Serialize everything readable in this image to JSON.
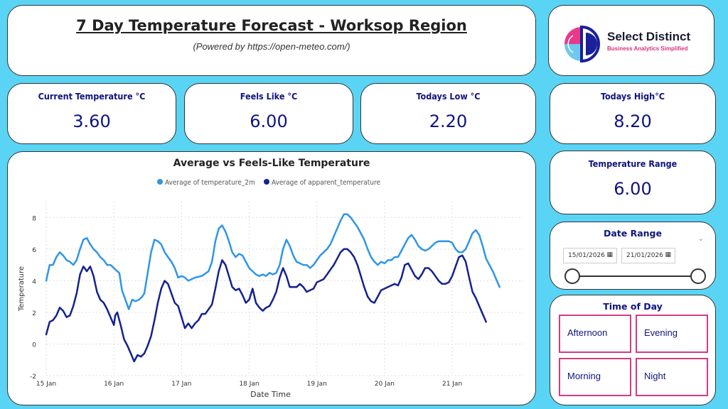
{
  "header": {
    "title": "7 Day Temperature Forecast - Worksop Region",
    "subtitle": "(Powered by https://open-meteo.com/)"
  },
  "logo": {
    "brand": "Select Distinct",
    "tagline": "Business Analytics Simplified"
  },
  "kpis": {
    "current": {
      "label": "Current Temperature °C",
      "value": "3.60"
    },
    "feels": {
      "label": "Feels Like °C",
      "value": "6.00"
    },
    "low": {
      "label": "Todays Low °C",
      "value": "2.20"
    },
    "high": {
      "label": "Todays High°C",
      "value": "8.20"
    },
    "range": {
      "label": "Temperature Range",
      "value": "6.00"
    }
  },
  "date_range": {
    "label": "Date Range",
    "start": "15/01/2026",
    "end": "21/01/2026"
  },
  "time_of_day": {
    "label": "Time of Day",
    "options": [
      "Afternoon",
      "Evening",
      "Morning",
      "Night"
    ]
  },
  "colors": {
    "series1": "#2f95e8",
    "series2": "#14218f",
    "kpi_text": "#10147e",
    "accent": "#d33b85"
  },
  "chart_data": {
    "type": "line",
    "title": "Average vs Feels-Like Temperature",
    "xlabel": "Date Time",
    "ylabel": "Temperature",
    "ylim": [
      -2,
      9
    ],
    "yticks": [
      -2,
      0,
      2,
      4,
      6,
      8
    ],
    "xlim": [
      0,
      7.05
    ],
    "xticks": [
      {
        "x": 0,
        "label": "15 Jan"
      },
      {
        "x": 1,
        "label": "16 Jan"
      },
      {
        "x": 2,
        "label": "17 Jan"
      },
      {
        "x": 3,
        "label": "18 Jan"
      },
      {
        "x": 4,
        "label": "19 Jan"
      },
      {
        "x": 5,
        "label": "20 Jan"
      },
      {
        "x": 6,
        "label": "21 Jan"
      }
    ],
    "legend": "top-center",
    "grid": true,
    "series": [
      {
        "name": "Average of temperature_2m",
        "points": [
          [
            0.0,
            4.0
          ],
          [
            0.05,
            5.0
          ],
          [
            0.1,
            5.0
          ],
          [
            0.15,
            5.5
          ],
          [
            0.2,
            5.8
          ],
          [
            0.25,
            5.6
          ],
          [
            0.3,
            5.3
          ],
          [
            0.35,
            5.2
          ],
          [
            0.4,
            5.0
          ],
          [
            0.45,
            5.3
          ],
          [
            0.5,
            6.0
          ],
          [
            0.55,
            6.6
          ],
          [
            0.6,
            6.7
          ],
          [
            0.65,
            6.3
          ],
          [
            0.7,
            6.0
          ],
          [
            0.75,
            5.8
          ],
          [
            0.8,
            5.5
          ],
          [
            0.85,
            5.3
          ],
          [
            0.9,
            5.0
          ],
          [
            0.95,
            5.0
          ],
          [
            1.0,
            4.8
          ],
          [
            1.05,
            4.6
          ],
          [
            1.08,
            4.5
          ],
          [
            1.12,
            3.4
          ],
          [
            1.17,
            2.8
          ],
          [
            1.22,
            2.2
          ],
          [
            1.27,
            2.8
          ],
          [
            1.32,
            2.7
          ],
          [
            1.37,
            2.8
          ],
          [
            1.42,
            3.0
          ],
          [
            1.45,
            3.2
          ],
          [
            1.5,
            4.5
          ],
          [
            1.55,
            5.8
          ],
          [
            1.6,
            6.6
          ],
          [
            1.65,
            6.5
          ],
          [
            1.7,
            6.3
          ],
          [
            1.75,
            5.8
          ],
          [
            1.8,
            5.5
          ],
          [
            1.85,
            5.2
          ],
          [
            1.9,
            4.8
          ],
          [
            1.95,
            4.2
          ],
          [
            2.0,
            4.3
          ],
          [
            2.05,
            4.2
          ],
          [
            2.1,
            4.0
          ],
          [
            2.2,
            4.2
          ],
          [
            2.3,
            4.3
          ],
          [
            2.4,
            4.6
          ],
          [
            2.45,
            5.2
          ],
          [
            2.5,
            6.5
          ],
          [
            2.55,
            7.3
          ],
          [
            2.6,
            7.5
          ],
          [
            2.65,
            7.1
          ],
          [
            2.7,
            6.5
          ],
          [
            2.75,
            5.8
          ],
          [
            2.8,
            5.5
          ],
          [
            2.85,
            5.7
          ],
          [
            2.9,
            5.6
          ],
          [
            2.95,
            5.2
          ],
          [
            3.0,
            4.8
          ],
          [
            3.05,
            4.6
          ],
          [
            3.1,
            4.4
          ],
          [
            3.15,
            4.3
          ],
          [
            3.2,
            4.4
          ],
          [
            3.25,
            4.3
          ],
          [
            3.3,
            4.5
          ],
          [
            3.35,
            4.4
          ],
          [
            3.4,
            4.5
          ],
          [
            3.45,
            5.0
          ],
          [
            3.5,
            6.0
          ],
          [
            3.55,
            6.6
          ],
          [
            3.6,
            6.2
          ],
          [
            3.65,
            5.6
          ],
          [
            3.7,
            5.2
          ],
          [
            3.75,
            5.1
          ],
          [
            3.8,
            5.0
          ],
          [
            3.85,
            5.0
          ],
          [
            3.9,
            4.8
          ],
          [
            3.95,
            5.0
          ],
          [
            4.0,
            5.3
          ],
          [
            4.05,
            5.6
          ],
          [
            4.1,
            5.8
          ],
          [
            4.15,
            6.0
          ],
          [
            4.2,
            6.3
          ],
          [
            4.25,
            6.8
          ],
          [
            4.3,
            7.3
          ],
          [
            4.35,
            7.8
          ],
          [
            4.4,
            8.2
          ],
          [
            4.45,
            8.2
          ],
          [
            4.5,
            8.0
          ],
          [
            4.55,
            7.7
          ],
          [
            4.6,
            7.4
          ],
          [
            4.65,
            7.0
          ],
          [
            4.7,
            6.6
          ],
          [
            4.75,
            6.0
          ],
          [
            4.8,
            5.5
          ],
          [
            4.85,
            5.2
          ],
          [
            4.9,
            5.0
          ],
          [
            4.95,
            5.2
          ],
          [
            5.0,
            5.1
          ],
          [
            5.05,
            5.3
          ],
          [
            5.1,
            5.3
          ],
          [
            5.15,
            5.5
          ],
          [
            5.2,
            5.5
          ],
          [
            5.25,
            5.9
          ],
          [
            5.3,
            6.3
          ],
          [
            5.35,
            6.7
          ],
          [
            5.4,
            6.9
          ],
          [
            5.45,
            6.6
          ],
          [
            5.5,
            6.2
          ],
          [
            5.55,
            6.0
          ],
          [
            5.6,
            5.9
          ],
          [
            5.65,
            6.0
          ],
          [
            5.7,
            6.2
          ],
          [
            5.75,
            6.4
          ],
          [
            5.8,
            6.5
          ],
          [
            5.85,
            6.5
          ],
          [
            5.9,
            6.5
          ],
          [
            5.95,
            6.5
          ],
          [
            6.0,
            6.4
          ],
          [
            6.05,
            6.0
          ],
          [
            6.1,
            5.8
          ],
          [
            6.15,
            5.8
          ],
          [
            6.2,
            6.0
          ],
          [
            6.25,
            6.5
          ],
          [
            6.3,
            7.0
          ],
          [
            6.35,
            7.2
          ],
          [
            6.4,
            6.9
          ],
          [
            6.45,
            6.2
          ],
          [
            6.5,
            5.4
          ],
          [
            6.55,
            5.0
          ],
          [
            6.6,
            4.6
          ],
          [
            6.65,
            4.1
          ],
          [
            6.7,
            3.6
          ]
        ]
      },
      {
        "name": "Average of apparent_temperature",
        "points": [
          [
            0.0,
            0.6
          ],
          [
            0.05,
            1.4
          ],
          [
            0.1,
            1.5
          ],
          [
            0.15,
            1.8
          ],
          [
            0.2,
            2.3
          ],
          [
            0.25,
            2.1
          ],
          [
            0.3,
            1.7
          ],
          [
            0.35,
            1.8
          ],
          [
            0.4,
            2.4
          ],
          [
            0.45,
            3.2
          ],
          [
            0.5,
            4.4
          ],
          [
            0.55,
            4.9
          ],
          [
            0.6,
            4.6
          ],
          [
            0.65,
            4.9
          ],
          [
            0.7,
            4.3
          ],
          [
            0.75,
            3.3
          ],
          [
            0.8,
            2.8
          ],
          [
            0.85,
            2.6
          ],
          [
            0.9,
            2.2
          ],
          [
            0.95,
            1.7
          ],
          [
            1.0,
            1.2
          ],
          [
            1.02,
            1.8
          ],
          [
            1.05,
            2.0
          ],
          [
            1.1,
            1.2
          ],
          [
            1.15,
            0.3
          ],
          [
            1.2,
            -0.1
          ],
          [
            1.25,
            -0.6
          ],
          [
            1.3,
            -1.1
          ],
          [
            1.35,
            -0.7
          ],
          [
            1.4,
            -0.8
          ],
          [
            1.45,
            -0.6
          ],
          [
            1.5,
            -0.1
          ],
          [
            1.55,
            0.5
          ],
          [
            1.6,
            1.5
          ],
          [
            1.65,
            2.6
          ],
          [
            1.7,
            3.5
          ],
          [
            1.75,
            4.0
          ],
          [
            1.8,
            3.8
          ],
          [
            1.85,
            3.2
          ],
          [
            1.9,
            2.6
          ],
          [
            1.95,
            2.4
          ],
          [
            2.0,
            1.7
          ],
          [
            2.05,
            1.0
          ],
          [
            2.1,
            1.3
          ],
          [
            2.15,
            1.0
          ],
          [
            2.2,
            1.3
          ],
          [
            2.25,
            1.5
          ],
          [
            2.3,
            1.9
          ],
          [
            2.35,
            1.9
          ],
          [
            2.4,
            2.2
          ],
          [
            2.45,
            2.5
          ],
          [
            2.5,
            3.5
          ],
          [
            2.55,
            4.6
          ],
          [
            2.6,
            5.3
          ],
          [
            2.65,
            5.0
          ],
          [
            2.7,
            4.3
          ],
          [
            2.75,
            3.6
          ],
          [
            2.8,
            3.4
          ],
          [
            2.85,
            3.5
          ],
          [
            2.9,
            3.1
          ],
          [
            2.95,
            2.6
          ],
          [
            3.0,
            2.8
          ],
          [
            3.05,
            3.5
          ],
          [
            3.1,
            2.6
          ],
          [
            3.15,
            2.3
          ],
          [
            3.2,
            2.1
          ],
          [
            3.25,
            2.3
          ],
          [
            3.3,
            2.4
          ],
          [
            3.35,
            2.8
          ],
          [
            3.4,
            3.3
          ],
          [
            3.45,
            4.2
          ],
          [
            3.5,
            4.8
          ],
          [
            3.55,
            4.3
          ],
          [
            3.6,
            3.6
          ],
          [
            3.65,
            3.6
          ],
          [
            3.7,
            3.6
          ],
          [
            3.75,
            3.8
          ],
          [
            3.8,
            3.6
          ],
          [
            3.85,
            3.3
          ],
          [
            3.9,
            3.4
          ],
          [
            3.95,
            3.5
          ],
          [
            4.0,
            3.9
          ],
          [
            4.05,
            4.0
          ],
          [
            4.1,
            4.1
          ],
          [
            4.15,
            4.4
          ],
          [
            4.2,
            4.7
          ],
          [
            4.25,
            5.0
          ],
          [
            4.3,
            5.4
          ],
          [
            4.35,
            5.8
          ],
          [
            4.4,
            6.0
          ],
          [
            4.45,
            6.0
          ],
          [
            4.5,
            5.8
          ],
          [
            4.55,
            5.5
          ],
          [
            4.6,
            5.0
          ],
          [
            4.65,
            4.3
          ],
          [
            4.7,
            3.6
          ],
          [
            4.75,
            3.0
          ],
          [
            4.8,
            2.7
          ],
          [
            4.85,
            2.6
          ],
          [
            4.9,
            3.0
          ],
          [
            4.95,
            3.4
          ],
          [
            5.0,
            3.5
          ],
          [
            5.05,
            3.6
          ],
          [
            5.1,
            3.7
          ],
          [
            5.15,
            3.8
          ],
          [
            5.2,
            3.7
          ],
          [
            5.25,
            4.2
          ],
          [
            5.3,
            5.0
          ],
          [
            5.35,
            5.1
          ],
          [
            5.4,
            4.7
          ],
          [
            5.45,
            4.3
          ],
          [
            5.5,
            4.1
          ],
          [
            5.55,
            4.4
          ],
          [
            5.6,
            4.8
          ],
          [
            5.65,
            4.8
          ],
          [
            5.7,
            4.6
          ],
          [
            5.75,
            4.3
          ],
          [
            5.8,
            4.0
          ],
          [
            5.85,
            3.8
          ],
          [
            5.9,
            3.8
          ],
          [
            5.95,
            3.9
          ],
          [
            6.0,
            4.3
          ],
          [
            6.05,
            4.9
          ],
          [
            6.1,
            5.5
          ],
          [
            6.15,
            5.6
          ],
          [
            6.2,
            5.2
          ],
          [
            6.25,
            4.2
          ],
          [
            6.3,
            3.3
          ],
          [
            6.35,
            2.9
          ],
          [
            6.4,
            2.4
          ],
          [
            6.45,
            1.9
          ],
          [
            6.5,
            1.4
          ]
        ]
      }
    ]
  }
}
